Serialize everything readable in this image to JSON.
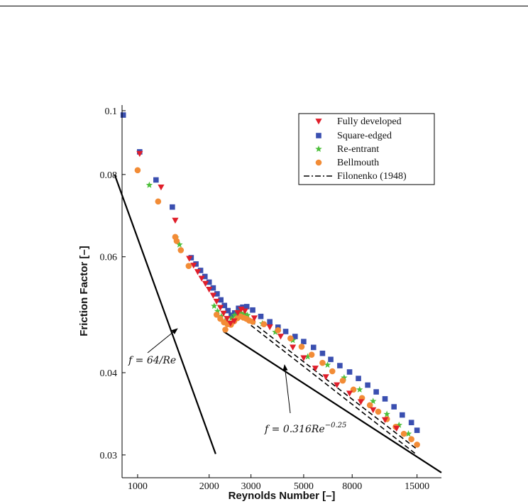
{
  "chart_data": {
    "type": "scatter",
    "xlabel": "Reynolds Number [–]",
    "ylabel": "Friction Factor [–]",
    "x_scale": "log",
    "y_scale": "log",
    "xlim": [
      860,
      19000
    ],
    "ylim": [
      0.0277,
      0.102
    ],
    "x_ticks": [
      1000,
      2000,
      3000,
      5000,
      8000,
      15000
    ],
    "x_tick_labels": [
      "1000",
      "2000",
      "3000",
      "5000",
      "8000",
      "15000"
    ],
    "y_ticks": [
      0.03,
      0.04,
      0.06,
      0.08,
      0.1
    ],
    "y_tick_labels": [
      "0.03",
      "0.04",
      "0.06",
      "0.08",
      "0.1"
    ],
    "grid": false,
    "legend_position": "top-right",
    "colors": {
      "fully_developed": "#e01e2a",
      "square_edged": "#3a4fb0",
      "re_entrant": "#4cbf3a",
      "bellmouth": "#f28c36",
      "line": "#000000"
    },
    "series": [
      {
        "name": "Fully developed",
        "marker": "triangle-down",
        "points": [
          [
            1020,
            0.086
          ],
          [
            1255,
            0.0765
          ],
          [
            1440,
            0.0681
          ],
          [
            1650,
            0.0596
          ],
          [
            1720,
            0.0582
          ],
          [
            1790,
            0.0569
          ],
          [
            1860,
            0.0556
          ],
          [
            1930,
            0.0546
          ],
          [
            2000,
            0.0535
          ],
          [
            2080,
            0.0524
          ],
          [
            2150,
            0.0513
          ],
          [
            2230,
            0.0502
          ],
          [
            2300,
            0.0492
          ],
          [
            2380,
            0.0483
          ],
          [
            2460,
            0.0475
          ],
          [
            2550,
            0.0479
          ],
          [
            2640,
            0.0493
          ],
          [
            2730,
            0.0499
          ],
          [
            2830,
            0.0496
          ],
          [
            3100,
            0.0484
          ],
          [
            3600,
            0.0469
          ],
          [
            4000,
            0.0454
          ],
          [
            4500,
            0.0437
          ],
          [
            5000,
            0.0421
          ],
          [
            5600,
            0.0406
          ],
          [
            6200,
            0.0394
          ],
          [
            6900,
            0.0383
          ],
          [
            7800,
            0.0372
          ],
          [
            8700,
            0.0361
          ],
          [
            9800,
            0.0351
          ],
          [
            11000,
            0.0339
          ],
          [
            12300,
            0.0329
          ]
        ]
      },
      {
        "name": "Square-edged",
        "marker": "square",
        "points": [
          [
            870,
            0.0985
          ],
          [
            1020,
            0.0866
          ],
          [
            1195,
            0.0785
          ],
          [
            1400,
            0.0714
          ],
          [
            1680,
            0.0598
          ],
          [
            1760,
            0.0585
          ],
          [
            1840,
            0.0572
          ],
          [
            1920,
            0.056
          ],
          [
            2000,
            0.0549
          ],
          [
            2080,
            0.0538
          ],
          [
            2160,
            0.0527
          ],
          [
            2240,
            0.0516
          ],
          [
            2320,
            0.0506
          ],
          [
            2400,
            0.0497
          ],
          [
            2480,
            0.0489
          ],
          [
            2560,
            0.0493
          ],
          [
            2660,
            0.0501
          ],
          [
            2770,
            0.0503
          ],
          [
            2880,
            0.0504
          ],
          [
            3050,
            0.0498
          ],
          [
            3300,
            0.0487
          ],
          [
            3600,
            0.0478
          ],
          [
            3900,
            0.0469
          ],
          [
            4200,
            0.0462
          ],
          [
            4600,
            0.0454
          ],
          [
            5000,
            0.0446
          ],
          [
            5500,
            0.0437
          ],
          [
            6000,
            0.0428
          ],
          [
            6500,
            0.0419
          ],
          [
            7100,
            0.041
          ],
          [
            7800,
            0.0401
          ],
          [
            8500,
            0.0392
          ],
          [
            9300,
            0.0383
          ],
          [
            10100,
            0.0374
          ],
          [
            11000,
            0.0365
          ],
          [
            12000,
            0.0355
          ],
          [
            13000,
            0.0345
          ],
          [
            14200,
            0.0336
          ],
          [
            15000,
            0.0327
          ]
        ]
      },
      {
        "name": "Re-entrant",
        "marker": "star",
        "points": [
          [
            1120,
            0.0771
          ],
          [
            1450,
            0.0641
          ],
          [
            1500,
            0.0626
          ],
          [
            2100,
            0.0505
          ],
          [
            2170,
            0.0496
          ],
          [
            2250,
            0.0487
          ],
          [
            2330,
            0.0479
          ],
          [
            2400,
            0.0477
          ],
          [
            2480,
            0.0484
          ],
          [
            2560,
            0.0489
          ],
          [
            2640,
            0.0494
          ],
          [
            2720,
            0.0493
          ],
          [
            2810,
            0.0491
          ],
          [
            2900,
            0.0489
          ],
          [
            3350,
            0.0475
          ],
          [
            3800,
            0.0461
          ],
          [
            4500,
            0.0448
          ],
          [
            5200,
            0.0423
          ],
          [
            6300,
            0.0411
          ],
          [
            7400,
            0.0393
          ],
          [
            8600,
            0.0377
          ],
          [
            9800,
            0.0362
          ],
          [
            11200,
            0.0346
          ],
          [
            12600,
            0.0333
          ],
          [
            13800,
            0.0323
          ]
        ]
      },
      {
        "name": "Bellmouth",
        "marker": "circle",
        "points": [
          [
            1000,
            0.0812
          ],
          [
            1220,
            0.0728
          ],
          [
            1440,
            0.0643
          ],
          [
            1460,
            0.0634
          ],
          [
            1520,
            0.0614
          ],
          [
            1640,
            0.0581
          ],
          [
            2150,
            0.049
          ],
          [
            2230,
            0.0483
          ],
          [
            2310,
            0.0477
          ],
          [
            2390,
            0.0474
          ],
          [
            2470,
            0.0473
          ],
          [
            2550,
            0.0479
          ],
          [
            2630,
            0.0484
          ],
          [
            2710,
            0.0487
          ],
          [
            2790,
            0.0485
          ],
          [
            2870,
            0.0483
          ],
          [
            2950,
            0.048
          ],
          [
            3050,
            0.0478
          ],
          [
            2340,
            0.0465
          ],
          [
            3400,
            0.0474
          ],
          [
            3900,
            0.0464
          ],
          [
            4400,
            0.0451
          ],
          [
            4900,
            0.0438
          ],
          [
            5400,
            0.0426
          ],
          [
            6000,
            0.0414
          ],
          [
            6600,
            0.0402
          ],
          [
            7300,
            0.0389
          ],
          [
            8100,
            0.0377
          ],
          [
            8800,
            0.0366
          ],
          [
            9500,
            0.0357
          ],
          [
            10300,
            0.0349
          ],
          [
            11200,
            0.034
          ],
          [
            12200,
            0.0331
          ],
          [
            13200,
            0.0323
          ],
          [
            14200,
            0.0317
          ],
          [
            15000,
            0.0311
          ]
        ]
      }
    ],
    "lines": [
      {
        "name": "Filonenko (1948)",
        "style": "dash-dot",
        "segments": [
          [
            [
              3000,
              0.0479
            ],
            [
              15000,
              0.0306
            ]
          ],
          [
            [
              3000,
              0.0472
            ],
            [
              15000,
              0.03
            ]
          ]
        ]
      },
      {
        "name": "f = 64/Re",
        "style": "solid",
        "segments": [
          [
            [
              800,
              0.08
            ],
            [
              2130,
              0.0301
            ]
          ]
        ]
      },
      {
        "name": "f = 0.316Re^-0.25",
        "style": "solid",
        "segments": [
          [
            [
              2300,
              0.0462
            ],
            [
              19000,
              0.0282
            ]
          ]
        ]
      }
    ],
    "legend": [
      {
        "label": "Fully developed",
        "marker": "triangle-down",
        "color": "#e01e2a"
      },
      {
        "label": "Square-edged",
        "marker": "square",
        "color": "#3a4fb0"
      },
      {
        "label": "Re-entrant",
        "marker": "star",
        "color": "#4cbf3a"
      },
      {
        "label": "Bellmouth",
        "marker": "circle",
        "color": "#f28c36"
      },
      {
        "label": "Filonenko (1948)",
        "marker": "dash-dot-line",
        "color": "#000000"
      }
    ],
    "annotations": [
      {
        "text": "f = 64/Re",
        "points_to": [
          1990,
          0.0445
        ]
      },
      {
        "text": "f = 0.316Re",
        "superscript": "−0.25",
        "points_to": [
          4600,
          0.0397
        ]
      }
    ]
  }
}
